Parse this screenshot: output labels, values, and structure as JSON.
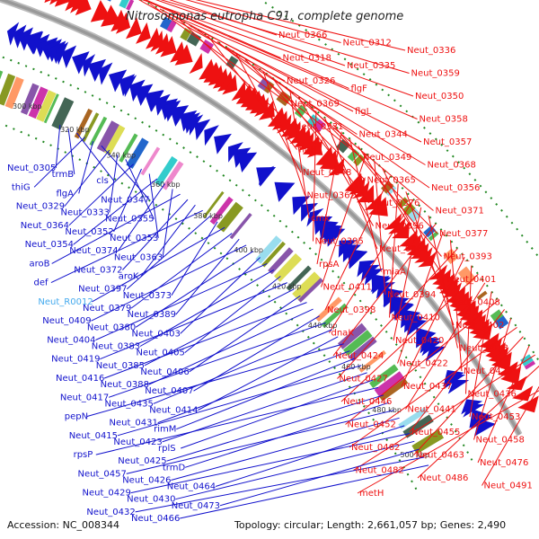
{
  "title": "Nitrosomonas eutropha C91, complete genome",
  "footer": {
    "accession": "Accession: NC_008344",
    "summary": "Topology: circular; Length: 2,661,057 bp; Genes: 2,490"
  },
  "colors": {
    "forward": "#ee1111",
    "reverse": "#1111cc",
    "highlight": "#44aaee",
    "backbone": "#999999",
    "dots": "#228822"
  },
  "ticks": [
    "280 kbp",
    "300 kbp",
    "320 kbp",
    "340 kbp",
    "360 kbp",
    "380 kbp",
    "400 kbp",
    "420 kbp",
    "440 kbp",
    "460 kbp",
    "480 kbp",
    "500 kbp"
  ],
  "right_labels": [
    "Neut_0366",
    "Neut_0312",
    "Neut_0336",
    "Neut_0318",
    "Neut_0335",
    "Neut_0359",
    "Neut_0326",
    "flgF",
    "Neut_0350",
    "Neut_0369",
    "flgL",
    "Neut_0358",
    "Neut_0331",
    "Neut_0344",
    "Neut_0357",
    "flgH",
    "Neut_0349",
    "Neut_0368",
    "Neut_0348",
    "Neut_0365",
    "Neut_0356",
    "Neut_0362",
    "Neut_0376",
    "Neut_0371",
    "cmk",
    "Neut_0396",
    "Neut_0377",
    "Neut_0395",
    "Neut_0384",
    "Neut_0393",
    "rpsA",
    "miaA",
    "Neut_0401",
    "Neut_0411",
    "Neut_0394",
    "Neut_0408",
    "Neut_0398",
    "Neut_0410",
    "Neut_0402",
    "dnaK",
    "Neut_0420",
    "Neut_0413",
    "Neut_0424",
    "Neut_0422",
    "Neut_0428",
    "Neut_0427",
    "Neut_0437",
    "Neut_0436",
    "Neut_0446",
    "Neut_0441",
    "Neut_0453",
    "Neut_0452",
    "Neut_0455",
    "Neut_0458",
    "Neut_0462",
    "Neut_0463",
    "Neut_0476",
    "Neut_0482",
    "Neut_0486",
    "Neut_0491",
    "metH"
  ],
  "left_labels": [
    "Neut_0305",
    "trmB",
    "cls",
    "thiG",
    "flgA",
    "Neut_0347",
    "Neut_0329",
    "Neut_0333",
    "Neut_0355",
    "Neut_0364",
    "Neut_0352",
    "Neut_0353",
    "Neut_0354",
    "Neut_0374",
    "Neut_0363",
    "aroB",
    "Neut_0372",
    "aroK",
    "def",
    "Neut_0397",
    "Neut_0373",
    "Neut_R0012",
    "Neut_0379",
    "Neut_0389",
    "Neut_0409",
    "Neut_0380",
    "Neut_0403",
    "Neut_0404",
    "Neut_0383",
    "Neut_0405",
    "Neut_0419",
    "Neut_0385",
    "Neut_0406",
    "Neut_0416",
    "Neut_0388",
    "Neut_0407",
    "Neut_0417",
    "Neut_0435",
    "Neut_0414",
    "pepN",
    "Neut_0431",
    "rimM",
    "Neut_0415",
    "Neut_0423",
    "rplS",
    "rpsP",
    "Neut_0425",
    "trmD",
    "Neut_0457",
    "Neut_0426",
    "Neut_0464",
    "Neut_0429",
    "Neut_0430",
    "Neut_0473",
    "Neut_0432",
    "Neut_0466"
  ]
}
